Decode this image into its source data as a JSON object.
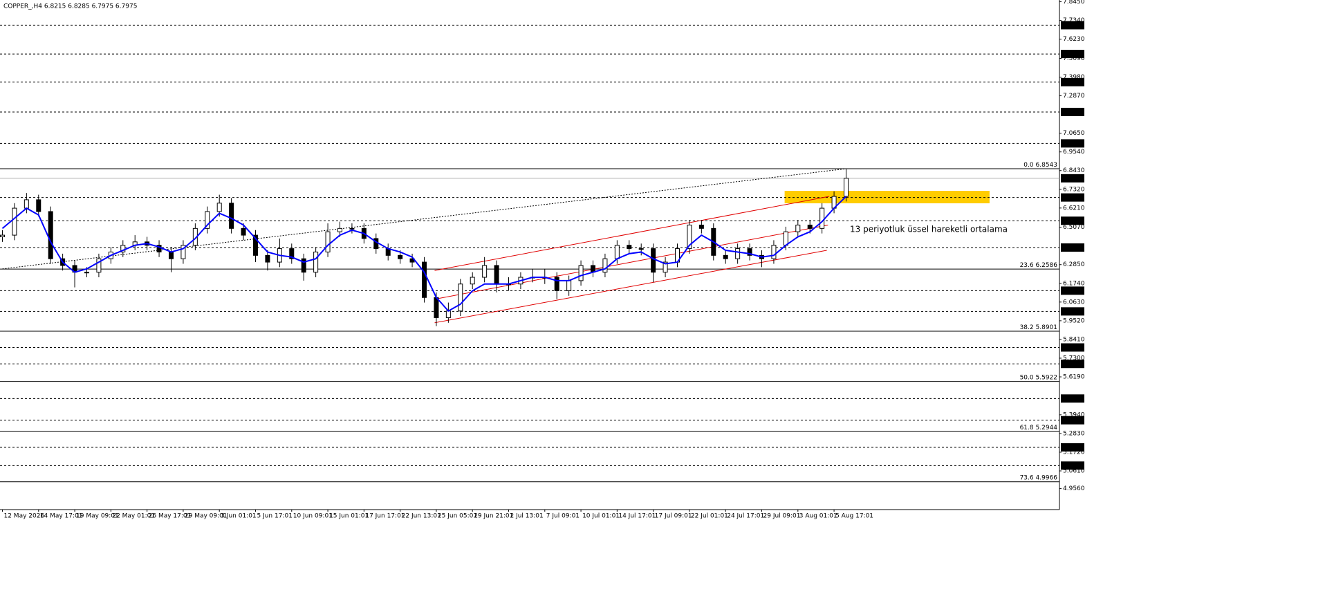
{
  "chart_data": {
    "type": "candlestick",
    "title": "COPPER_,H4  6.8215 6.8285 6.7975 6.7975",
    "annotation": "13 periyotluk üssel hareketli ortalama",
    "xlim": [
      -0.2,
      87.7
    ],
    "ylim": [
      4.8313,
      7.8555
    ],
    "xticks": [
      {
        "value": 0,
        "label": "12 May 2026"
      },
      {
        "value": 3,
        "label": "14 May 17:01"
      },
      {
        "value": 6,
        "label": "19 May 09:01"
      },
      {
        "value": 9,
        "label": "22 May 01:01"
      },
      {
        "value": 12,
        "label": "26 May 17:01"
      },
      {
        "value": 15,
        "label": "29 May 09:01"
      },
      {
        "value": 18,
        "label": "3 Jun 01:01"
      },
      {
        "value": 21,
        "label": "5 Jun 17:01"
      },
      {
        "value": 24,
        "label": "10 Jun 09:01"
      },
      {
        "value": 27,
        "label": "15 Jun 01:01"
      },
      {
        "value": 30,
        "label": "17 Jun 17:01"
      },
      {
        "value": 33,
        "label": "22 Jun 13:01"
      },
      {
        "value": 36,
        "label": "25 Jun 05:01"
      },
      {
        "value": 39,
        "label": "29 Jun 21:01"
      },
      {
        "value": 42,
        "label": "2 Jul 13:01"
      },
      {
        "value": 45,
        "label": "7 Jul 09:01"
      },
      {
        "value": 48,
        "label": "10 Jul 01:01"
      },
      {
        "value": 51,
        "label": "14 Jul 17:01"
      },
      {
        "value": 54,
        "label": "17 Jul 09:01"
      },
      {
        "value": 57,
        "label": "22 Jul 01:01"
      },
      {
        "value": 60,
        "label": "24 Jul 17:01"
      },
      {
        "value": 63,
        "label": "29 Jul 09:01"
      },
      {
        "value": 66,
        "label": "3 Aug 01:01"
      },
      {
        "value": 69,
        "label": "5 Aug 17:01"
      }
    ],
    "yticks": [
      {
        "value": 7.845,
        "label": "7.8450"
      },
      {
        "value": 7.734,
        "label": "7.7340"
      },
      {
        "value": 7.623,
        "label": "7.6230"
      },
      {
        "value": 7.509,
        "label": "7.5090"
      },
      {
        "value": 7.398,
        "label": "7.3980"
      },
      {
        "value": 7.287,
        "label": "7.2870"
      },
      {
        "value": 7.065,
        "label": "7.0650"
      },
      {
        "value": 6.954,
        "label": "6.9540"
      },
      {
        "value": 6.843,
        "label": "6.8430"
      },
      {
        "value": 6.732,
        "label": "6.7320"
      },
      {
        "value": 6.621,
        "label": "6.6210"
      },
      {
        "value": 6.507,
        "label": "6.5070"
      },
      {
        "value": 6.285,
        "label": "6.2850"
      },
      {
        "value": 6.174,
        "label": "6.1740"
      },
      {
        "value": 6.063,
        "label": "6.0630"
      },
      {
        "value": 5.952,
        "label": "5.9520"
      },
      {
        "value": 5.841,
        "label": "5.8410"
      },
      {
        "value": 5.73,
        "label": "5.7300"
      },
      {
        "value": 5.619,
        "label": "5.6190"
      },
      {
        "value": 5.394,
        "label": "5.3940"
      },
      {
        "value": 5.283,
        "label": "5.2830"
      },
      {
        "value": 5.172,
        "label": "5.1720"
      },
      {
        "value": 5.061,
        "label": "5.0610"
      },
      {
        "value": 4.956,
        "label": "4.9560"
      }
    ],
    "open": [
      6.45,
      6.46,
      6.62,
      6.67,
      6.6,
      6.32,
      6.28,
      6.24,
      6.24,
      6.32,
      6.36,
      6.4,
      6.42,
      6.4,
      6.36,
      6.32,
      6.4,
      6.5,
      6.6,
      6.65,
      6.5,
      6.46,
      6.34,
      6.3,
      6.38,
      6.32,
      6.24,
      6.36,
      6.48,
      6.5,
      6.5,
      6.44,
      6.38,
      6.34,
      6.32,
      6.3,
      6.09,
      5.97,
      6.01,
      6.17,
      6.21,
      6.28,
      6.17,
      6.17,
      6.21,
      6.21,
      6.21,
      6.13,
      6.19,
      6.28,
      6.24,
      6.32,
      6.4,
      6.38,
      6.38,
      6.24,
      6.3,
      6.38,
      6.52,
      6.5,
      6.34,
      6.32,
      6.38,
      6.34,
      6.32,
      6.4,
      6.48,
      6.52,
      6.5,
      6.62,
      6.69
    ],
    "high": [
      6.49,
      6.65,
      6.71,
      6.7,
      6.63,
      6.35,
      6.31,
      6.27,
      6.35,
      6.39,
      6.43,
      6.46,
      6.45,
      6.43,
      6.39,
      6.43,
      6.53,
      6.63,
      6.7,
      6.68,
      6.53,
      6.49,
      6.37,
      6.44,
      6.41,
      6.35,
      6.39,
      6.53,
      6.54,
      6.53,
      6.53,
      6.47,
      6.41,
      6.37,
      6.35,
      6.33,
      6.12,
      6.06,
      6.2,
      6.24,
      6.33,
      6.31,
      6.21,
      6.24,
      6.26,
      6.26,
      6.24,
      6.22,
      6.31,
      6.31,
      6.35,
      6.43,
      6.43,
      6.41,
      6.41,
      6.33,
      6.41,
      6.55,
      6.55,
      6.53,
      6.37,
      6.41,
      6.41,
      6.37,
      6.43,
      6.51,
      6.55,
      6.55,
      6.65,
      6.72,
      6.8543
    ],
    "low": [
      6.42,
      6.43,
      6.59,
      6.57,
      6.29,
      6.25,
      6.15,
      6.21,
      6.21,
      6.29,
      6.33,
      6.37,
      6.37,
      6.33,
      6.24,
      6.29,
      6.37,
      6.47,
      6.57,
      6.47,
      6.43,
      6.3,
      6.25,
      6.27,
      6.29,
      6.19,
      6.21,
      6.33,
      6.45,
      6.47,
      6.41,
      6.35,
      6.31,
      6.29,
      6.27,
      6.06,
      5.92,
      5.94,
      5.98,
      6.14,
      6.18,
      6.12,
      6.13,
      6.14,
      6.18,
      6.17,
      6.08,
      6.1,
      6.16,
      6.21,
      6.21,
      6.29,
      6.35,
      6.34,
      6.18,
      6.21,
      6.27,
      6.35,
      6.47,
      6.31,
      6.29,
      6.29,
      6.31,
      6.27,
      6.29,
      6.37,
      6.45,
      6.47,
      6.47,
      6.59,
      6.66
    ],
    "close": [
      6.46,
      6.62,
      6.67,
      6.6,
      6.32,
      6.28,
      6.24,
      6.24,
      6.32,
      6.36,
      6.4,
      6.42,
      6.4,
      6.36,
      6.32,
      6.4,
      6.5,
      6.6,
      6.65,
      6.5,
      6.46,
      6.34,
      6.3,
      6.38,
      6.32,
      6.24,
      6.36,
      6.48,
      6.5,
      6.5,
      6.44,
      6.38,
      6.34,
      6.32,
      6.3,
      6.09,
      5.97,
      6.01,
      6.17,
      6.21,
      6.28,
      6.17,
      6.17,
      6.21,
      6.21,
      6.21,
      6.13,
      6.19,
      6.28,
      6.24,
      6.32,
      6.4,
      6.38,
      6.38,
      6.24,
      6.3,
      6.38,
      6.52,
      6.5,
      6.34,
      6.32,
      6.38,
      6.34,
      6.32,
      6.4,
      6.48,
      6.52,
      6.5,
      6.62,
      6.69,
      6.7975
    ],
    "ema": {
      "color": "#0000ff",
      "values": [
        6.5,
        6.56,
        6.62,
        6.58,
        6.42,
        6.3,
        6.24,
        6.26,
        6.3,
        6.34,
        6.37,
        6.4,
        6.41,
        6.39,
        6.36,
        6.38,
        6.44,
        6.52,
        6.59,
        6.56,
        6.52,
        6.44,
        6.36,
        6.34,
        6.33,
        6.3,
        6.32,
        6.4,
        6.46,
        6.49,
        6.47,
        6.42,
        6.38,
        6.36,
        6.33,
        6.24,
        6.09,
        6.01,
        6.05,
        6.13,
        6.17,
        6.17,
        6.17,
        6.19,
        6.21,
        6.21,
        6.19,
        6.19,
        6.22,
        6.24,
        6.26,
        6.32,
        6.35,
        6.36,
        6.32,
        6.29,
        6.3,
        6.4,
        6.46,
        6.42,
        6.37,
        6.36,
        6.35,
        6.33,
        6.34,
        6.4,
        6.45,
        6.48,
        6.54,
        6.62,
        6.69
      ]
    },
    "last_price": {
      "value": 6.7975,
      "label": "6.7975"
    },
    "levels": [
      {
        "value": 7.706,
        "label": "7.7060"
      },
      {
        "value": 7.535,
        "label": "7.5350"
      },
      {
        "value": 7.368,
        "label": "7.3680"
      },
      {
        "value": 7.191,
        "label": "7.1910"
      },
      {
        "value": 7.0045,
        "label": "7.0045"
      },
      {
        "value": 6.6835,
        "label": "6.6835"
      },
      {
        "value": 6.5455,
        "label": "6.5455"
      },
      {
        "value": 6.3865,
        "label": "6.3865"
      },
      {
        "value": 6.1305,
        "label": "6.1305"
      },
      {
        "value": 6.0075,
        "label": "6.0075"
      },
      {
        "value": 5.7935,
        "label": "5.7935"
      },
      {
        "value": 5.696,
        "label": "5.6960"
      },
      {
        "value": 5.4905,
        "label": "5.4905"
      },
      {
        "value": 5.3615,
        "label": "5.3615"
      },
      {
        "value": 5.2005,
        "label": "5.2005"
      },
      {
        "value": 5.0925,
        "label": "5.0925"
      }
    ],
    "fibonacci": [
      {
        "level": "0.0",
        "price": {
          "value": 6.8543,
          "label": "6.8543"
        }
      },
      {
        "level": "23.6",
        "price": {
          "value": 6.2586,
          "label": "6.2586"
        }
      },
      {
        "level": "38.2",
        "price": {
          "value": 5.8901,
          "label": "5.8901"
        }
      },
      {
        "level": "50.0",
        "price": {
          "value": 5.5922,
          "label": "5.5922"
        }
      },
      {
        "level": "61.8",
        "price": {
          "value": 5.2944,
          "label": "5.2944"
        }
      },
      {
        "level": "73.6",
        "price": {
          "value": 4.9966,
          "label": "4.9966"
        }
      }
    ],
    "trendlines": [
      {
        "x": [
          35.86,
          68.6
        ],
        "y": [
          6.25,
          6.69
        ],
        "color": "#e00000",
        "style": "solid"
      },
      {
        "x": [
          35.86,
          68.5
        ],
        "y": [
          6.08,
          6.52
        ],
        "color": "#e00000",
        "style": "solid"
      },
      {
        "x": [
          35.86,
          68.4
        ],
        "y": [
          5.94,
          6.37
        ],
        "color": "#e00000",
        "style": "solid"
      },
      {
        "x": [
          0,
          70
        ],
        "y": [
          6.26,
          6.8543
        ],
        "color": "#000000",
        "style": "dotted"
      }
    ],
    "zone": {
      "x": [
        64.9,
        81.9
      ],
      "y": [
        6.649,
        6.723
      ],
      "color": "#ffcc00"
    }
  }
}
